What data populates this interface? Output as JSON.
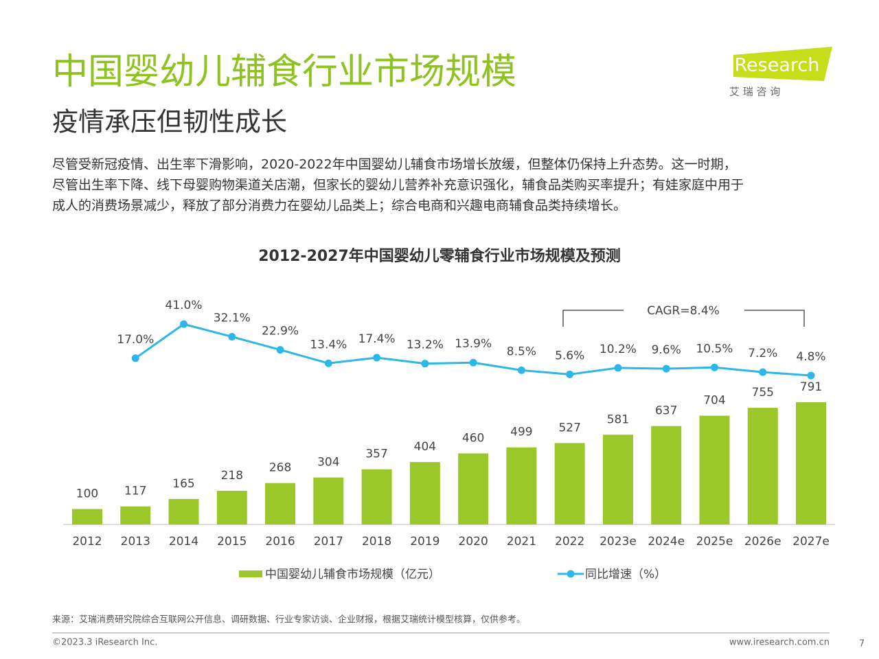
{
  "header": {
    "title": "中国婴幼儿辅食行业市场规模",
    "subtitle": "疫情承压但韧性成长",
    "logo": "iResearch",
    "logo_cn": "艾 瑞 咨 询"
  },
  "body": {
    "paragraph": [
      "尽管受新冠疫情、出生率下滑影响，2020-2022年中国婴幼儿辅食市场增长放缓，但整体仍保持上升态势。这一时期，",
      "尽管出生率下降、线下母婴购物渠道关店潮，但家长的婴幼儿营养补充意识强化，辅食品类购买率提升；有娃家庭中用于",
      "成人的消费场景减少，释放了部分消费力在婴幼儿品类上；综合电商和兴趣电商辅食品类持续增长。"
    ]
  },
  "chart_data": {
    "type": "bar",
    "title": "2012-2027年中国婴幼儿零辅食行业市场规模及预测",
    "categories": [
      "2012",
      "2013",
      "2014",
      "2015",
      "2016",
      "2017",
      "2018",
      "2019",
      "2020",
      "2021",
      "2022",
      "2023e",
      "2024e",
      "2025e",
      "2026e",
      "2027e"
    ],
    "series": [
      {
        "name": "中国婴幼儿辅食市场规模（亿元）",
        "type": "bar",
        "color": "#9cc72b",
        "values": [
          100,
          117,
          165,
          218,
          268,
          304,
          357,
          404,
          460,
          499,
          527,
          581,
          637,
          704,
          755,
          791
        ]
      },
      {
        "name": "同比增速（%）",
        "type": "line",
        "color": "#2db7e8",
        "values": [
          null,
          17,
          41,
          32.1,
          22.9,
          13.4,
          17.4,
          13.2,
          13.9,
          8.5,
          5.6,
          10.2,
          9.6,
          10.5,
          7.2,
          4.8
        ],
        "value_labels": [
          null,
          "17.0%",
          "41.0%",
          "32.1%",
          "22.9%",
          "13.4%",
          "17.4%",
          "13.2%",
          "13.9%",
          "8.5%",
          "5.6%",
          "10.2%",
          "9.6%",
          "10.5%",
          "7.2%",
          "4.8%"
        ]
      }
    ],
    "annotations": [
      {
        "text": "CAGR=8.4%"
      }
    ]
  },
  "footer": {
    "source": "来源：艾瑞消费研究院综合互联网公开信息、调研数据、行业专家访谈、企业财报，根据艾瑞统计模型核算，仅供参考。",
    "copyright": "©2023.3 iResearch Inc.",
    "website": "www.iresearch.com.cn",
    "page": "7"
  }
}
